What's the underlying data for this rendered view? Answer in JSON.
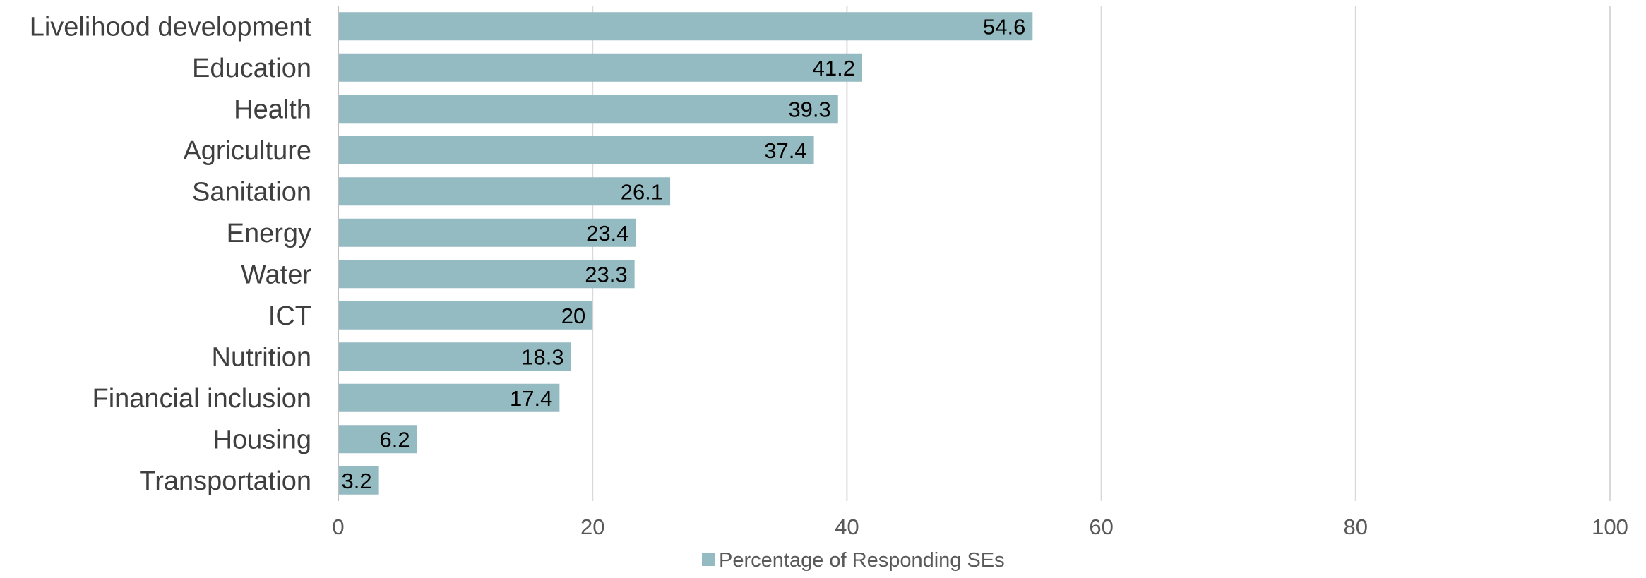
{
  "chart_data": {
    "type": "bar",
    "orientation": "horizontal",
    "categories": [
      "Livelihood development",
      "Education",
      "Health",
      "Agriculture",
      "Sanitation",
      "Energy",
      "Water",
      "ICT",
      "Nutrition",
      "Financial inclusion",
      "Housing",
      "Transportation"
    ],
    "series": [
      {
        "name": "Percentage of Responding SEs",
        "values": [
          54.6,
          41.2,
          39.3,
          37.4,
          26.1,
          23.4,
          23.3,
          20,
          18.3,
          17.4,
          6.2,
          3.2
        ],
        "color": "#93bbc1"
      }
    ],
    "xlim": [
      0,
      100
    ],
    "xticks": [
      0,
      20,
      40,
      60,
      80,
      100
    ],
    "grid": "vertical",
    "legend_position": "bottom",
    "data_labels": true,
    "title": "",
    "xlabel": "",
    "ylabel": ""
  }
}
